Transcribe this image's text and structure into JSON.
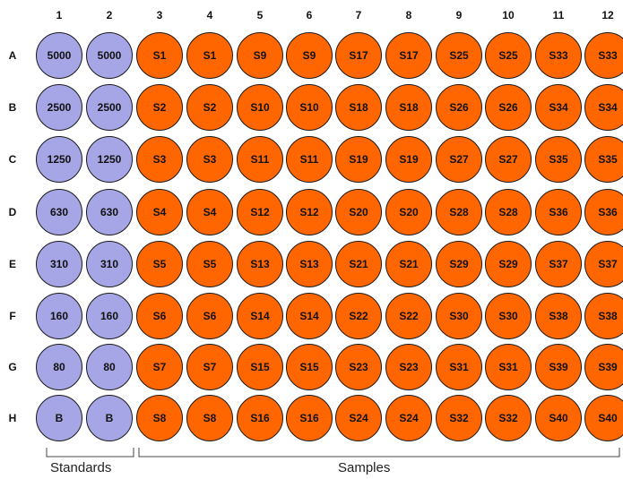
{
  "column_headers": [
    "1",
    "2",
    "3",
    "4",
    "5",
    "6",
    "7",
    "8",
    "9",
    "10",
    "11",
    "12"
  ],
  "row_headers": [
    "A",
    "B",
    "C",
    "D",
    "E",
    "F",
    "G",
    "H"
  ],
  "wells": [
    [
      "5000",
      "5000",
      "S1",
      "S1",
      "S9",
      "S9",
      "S17",
      "S17",
      "S25",
      "S25",
      "S33",
      "S33"
    ],
    [
      "2500",
      "2500",
      "S2",
      "S2",
      "S10",
      "S10",
      "S18",
      "S18",
      "S26",
      "S26",
      "S34",
      "S34"
    ],
    [
      "1250",
      "1250",
      "S3",
      "S3",
      "S11",
      "S11",
      "S19",
      "S19",
      "S27",
      "S27",
      "S35",
      "S35"
    ],
    [
      "630",
      "630",
      "S4",
      "S4",
      "S12",
      "S12",
      "S20",
      "S20",
      "S28",
      "S28",
      "S36",
      "S36"
    ],
    [
      "310",
      "310",
      "S5",
      "S5",
      "S13",
      "S13",
      "S21",
      "S21",
      "S29",
      "S29",
      "S37",
      "S37"
    ],
    [
      "160",
      "160",
      "S6",
      "S6",
      "S14",
      "S14",
      "S22",
      "S22",
      "S30",
      "S30",
      "S38",
      "S38"
    ],
    [
      "80",
      "80",
      "S7",
      "S7",
      "S15",
      "S15",
      "S23",
      "S23",
      "S31",
      "S31",
      "S39",
      "S39"
    ],
    [
      "B",
      "B",
      "S8",
      "S8",
      "S16",
      "S16",
      "S24",
      "S24",
      "S32",
      "S32",
      "S40",
      "S40"
    ]
  ],
  "groups": {
    "standards_label": "Standards",
    "samples_label": "Samples"
  },
  "colors": {
    "standards": "#a6a6e6",
    "samples": "#ff6600",
    "outline": "#1a1a1a"
  }
}
